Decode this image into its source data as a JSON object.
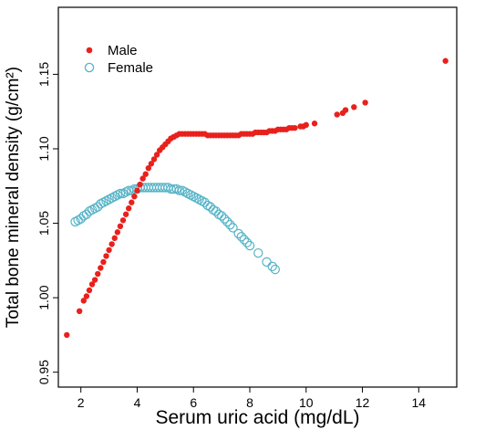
{
  "chart_data": {
    "type": "scatter",
    "title": "",
    "xlabel": "Serum uric acid (mg/dL)",
    "ylabel": "Total bone mineral density (g/cm²)",
    "xlim": [
      1.2,
      15.35
    ],
    "ylim": [
      0.94,
      1.195
    ],
    "xticks": [
      2,
      4,
      6,
      8,
      10,
      12,
      14
    ],
    "yticks": [
      0.95,
      1.0,
      1.05,
      1.1,
      1.15
    ],
    "ytick_labels": [
      "0.95",
      "1.00",
      "1.05",
      "1.10",
      "1.15"
    ],
    "legend_position": "top-left",
    "grid": false,
    "series": [
      {
        "name": "Male",
        "color": "#e8211c",
        "marker": "filled-circle",
        "x": [
          1.5,
          1.95,
          2.1,
          2.2,
          2.3,
          2.4,
          2.5,
          2.6,
          2.7,
          2.8,
          2.9,
          3.0,
          3.1,
          3.2,
          3.3,
          3.4,
          3.5,
          3.6,
          3.7,
          3.8,
          3.9,
          4.0,
          4.1,
          4.2,
          4.3,
          4.4,
          4.5,
          4.6,
          4.7,
          4.8,
          4.9,
          5.0,
          5.1,
          5.2,
          5.3,
          5.4,
          5.5,
          5.6,
          5.7,
          5.8,
          5.9,
          6.0,
          6.1,
          6.2,
          6.3,
          6.4,
          6.5,
          6.6,
          6.7,
          6.8,
          6.9,
          7.0,
          7.1,
          7.2,
          7.3,
          7.4,
          7.5,
          7.6,
          7.7,
          7.8,
          7.9,
          8.0,
          8.1,
          8.2,
          8.3,
          8.4,
          8.5,
          8.6,
          8.7,
          8.8,
          8.9,
          9.0,
          9.1,
          9.2,
          9.3,
          9.4,
          9.5,
          9.6,
          9.8,
          9.9,
          10.0,
          10.3,
          11.1,
          11.3,
          11.4,
          11.7,
          12.1,
          14.95
        ],
        "y": [
          0.975,
          0.991,
          0.998,
          1.001,
          1.005,
          1.009,
          1.012,
          1.016,
          1.02,
          1.024,
          1.028,
          1.032,
          1.036,
          1.04,
          1.044,
          1.048,
          1.052,
          1.056,
          1.06,
          1.064,
          1.068,
          1.072,
          1.076,
          1.08,
          1.083,
          1.087,
          1.09,
          1.093,
          1.096,
          1.099,
          1.101,
          1.103,
          1.105,
          1.107,
          1.108,
          1.109,
          1.11,
          1.11,
          1.11,
          1.11,
          1.11,
          1.11,
          1.11,
          1.11,
          1.11,
          1.11,
          1.109,
          1.109,
          1.109,
          1.109,
          1.109,
          1.109,
          1.109,
          1.109,
          1.109,
          1.109,
          1.109,
          1.109,
          1.11,
          1.11,
          1.11,
          1.11,
          1.11,
          1.111,
          1.111,
          1.111,
          1.111,
          1.111,
          1.112,
          1.112,
          1.112,
          1.113,
          1.113,
          1.113,
          1.113,
          1.114,
          1.114,
          1.114,
          1.115,
          1.115,
          1.116,
          1.117,
          1.123,
          1.124,
          1.126,
          1.128,
          1.131,
          1.159
        ]
      },
      {
        "name": "Female",
        "color": "#56b4c7",
        "marker": "open-circle",
        "x": [
          1.8,
          1.9,
          2.0,
          2.1,
          2.2,
          2.3,
          2.4,
          2.5,
          2.6,
          2.7,
          2.8,
          2.9,
          3.0,
          3.1,
          3.2,
          3.3,
          3.4,
          3.5,
          3.6,
          3.7,
          3.8,
          3.9,
          4.0,
          4.1,
          4.2,
          4.3,
          4.4,
          4.5,
          4.6,
          4.7,
          4.8,
          4.9,
          5.0,
          5.1,
          5.2,
          5.3,
          5.4,
          5.5,
          5.6,
          5.7,
          5.8,
          5.9,
          6.0,
          6.1,
          6.2,
          6.3,
          6.4,
          6.5,
          6.6,
          6.7,
          6.8,
          6.9,
          7.0,
          7.1,
          7.2,
          7.3,
          7.4,
          7.6,
          7.7,
          7.8,
          7.9,
          8.0,
          8.3,
          8.6,
          8.8,
          8.9
        ],
        "y": [
          1.051,
          1.052,
          1.053,
          1.055,
          1.056,
          1.058,
          1.059,
          1.06,
          1.061,
          1.063,
          1.064,
          1.065,
          1.066,
          1.067,
          1.068,
          1.069,
          1.07,
          1.07,
          1.071,
          1.072,
          1.072,
          1.073,
          1.073,
          1.074,
          1.074,
          1.074,
          1.074,
          1.074,
          1.074,
          1.074,
          1.074,
          1.074,
          1.074,
          1.074,
          1.073,
          1.073,
          1.073,
          1.072,
          1.072,
          1.071,
          1.07,
          1.069,
          1.068,
          1.067,
          1.066,
          1.065,
          1.064,
          1.062,
          1.061,
          1.059,
          1.058,
          1.056,
          1.055,
          1.053,
          1.051,
          1.049,
          1.047,
          1.043,
          1.041,
          1.039,
          1.037,
          1.035,
          1.03,
          1.024,
          1.021,
          1.019
        ]
      }
    ]
  }
}
